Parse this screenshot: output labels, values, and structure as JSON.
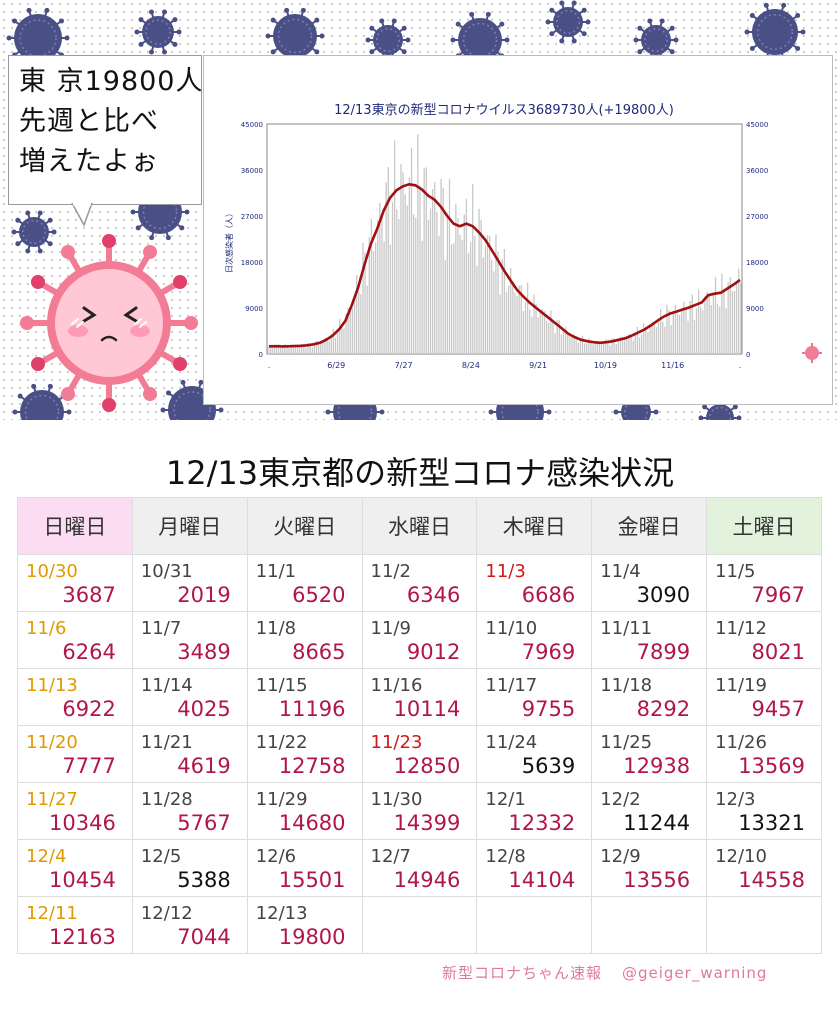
{
  "bubble": {
    "line1": "東 京19800人",
    "line2": "先週と比べ",
    "line3": "増えたよぉ"
  },
  "chart_data": {
    "type": "bar",
    "title": "12/13東京の新型コロナウイルス3689730人(+19800人)",
    "ylabel": "日次感染者（人）",
    "ylim": [
      0,
      45000
    ],
    "yticks": [
      "0",
      "9000",
      "18000",
      "27000",
      "36000",
      "45000"
    ],
    "xticks": [
      ".",
      "6/29",
      "7/27",
      "8/24",
      "9/21",
      "10/19",
      "11/16",
      "."
    ],
    "series": [
      {
        "values": [
          1500,
          1520,
          1480,
          1500,
          1550,
          1600,
          1700,
          1900,
          2200,
          2800,
          3600,
          4800,
          6500,
          9500,
          13000,
          17500,
          21500,
          24500,
          28000,
          30500,
          32000,
          32800,
          33200,
          33000,
          32200,
          31000,
          30200,
          28800,
          27000,
          25500,
          25000,
          25500,
          25000,
          23800,
          22300,
          20300,
          18300,
          16200,
          14300,
          12500,
          11200,
          10000,
          9000,
          8000,
          7000,
          6000,
          5000,
          4000,
          3300,
          2800,
          2500,
          2300,
          2200,
          2300,
          2500,
          2800,
          3100,
          3600,
          4200,
          4800,
          5600,
          6500,
          7300,
          7900,
          8300,
          8700,
          9100,
          9600,
          10100,
          11500,
          11800,
          12000,
          12800,
          13600,
          14500
        ]
      }
    ],
    "grid": false
  },
  "table": {
    "title": "12/13東京都の新型コロナ感染状況",
    "weekdays": [
      "日曜日",
      "月曜日",
      "火曜日",
      "水曜日",
      "木曜日",
      "金曜日",
      "土曜日"
    ],
    "rows": [
      [
        {
          "date": "10/30",
          "value": "3687"
        },
        {
          "date": "10/31",
          "value": "2019"
        },
        {
          "date": "11/1",
          "value": "6520"
        },
        {
          "date": "11/2",
          "value": "6346"
        },
        {
          "date": "11/3",
          "value": "6686"
        },
        {
          "date": "11/4",
          "value": "3090"
        },
        {
          "date": "11/5",
          "value": "7967"
        }
      ],
      [
        {
          "date": "11/6",
          "value": "6264"
        },
        {
          "date": "11/7",
          "value": "3489"
        },
        {
          "date": "11/8",
          "value": "8665"
        },
        {
          "date": "11/9",
          "value": "9012"
        },
        {
          "date": "11/10",
          "value": "7969"
        },
        {
          "date": "11/11",
          "value": "7899"
        },
        {
          "date": "11/12",
          "value": "8021"
        }
      ],
      [
        {
          "date": "11/13",
          "value": "6922"
        },
        {
          "date": "11/14",
          "value": "4025"
        },
        {
          "date": "11/15",
          "value": "11196"
        },
        {
          "date": "11/16",
          "value": "10114"
        },
        {
          "date": "11/17",
          "value": "9755"
        },
        {
          "date": "11/18",
          "value": "8292"
        },
        {
          "date": "11/19",
          "value": "9457"
        }
      ],
      [
        {
          "date": "11/20",
          "value": "7777"
        },
        {
          "date": "11/21",
          "value": "4619"
        },
        {
          "date": "11/22",
          "value": "12758"
        },
        {
          "date": "11/23",
          "value": "12850"
        },
        {
          "date": "11/24",
          "value": "5639"
        },
        {
          "date": "11/25",
          "value": "12938"
        },
        {
          "date": "11/26",
          "value": "13569"
        }
      ],
      [
        {
          "date": "11/27",
          "value": "10346"
        },
        {
          "date": "11/28",
          "value": "5767"
        },
        {
          "date": "11/29",
          "value": "14680"
        },
        {
          "date": "11/30",
          "value": "14399"
        },
        {
          "date": "12/1",
          "value": "12332"
        },
        {
          "date": "12/2",
          "value": "11244"
        },
        {
          "date": "12/3",
          "value": "13321"
        }
      ],
      [
        {
          "date": "12/4",
          "value": "10454"
        },
        {
          "date": "12/5",
          "value": "5388"
        },
        {
          "date": "12/6",
          "value": "15501"
        },
        {
          "date": "12/7",
          "value": "14946"
        },
        {
          "date": "12/8",
          "value": "14104"
        },
        {
          "date": "12/9",
          "value": "13556"
        },
        {
          "date": "12/10",
          "value": "14558"
        }
      ],
      [
        {
          "date": "12/11",
          "value": "12163"
        },
        {
          "date": "12/12",
          "value": "7044"
        },
        {
          "date": "12/13",
          "value": "19800"
        },
        {
          "date": "",
          "value": ""
        },
        {
          "date": "",
          "value": ""
        },
        {
          "date": "",
          "value": ""
        },
        {
          "date": "",
          "value": ""
        }
      ]
    ]
  },
  "credit": {
    "left": "新型コロナちゃん速報",
    "right": "@geiger_warning"
  },
  "colors": {
    "accent": "#b0164a",
    "sunday_date": "#e09a00",
    "holiday_date": "#d01818",
    "line": "#a01010",
    "bars": "#c8c8c8",
    "virus": "#4a4f86",
    "mascot": "#f27b96"
  }
}
